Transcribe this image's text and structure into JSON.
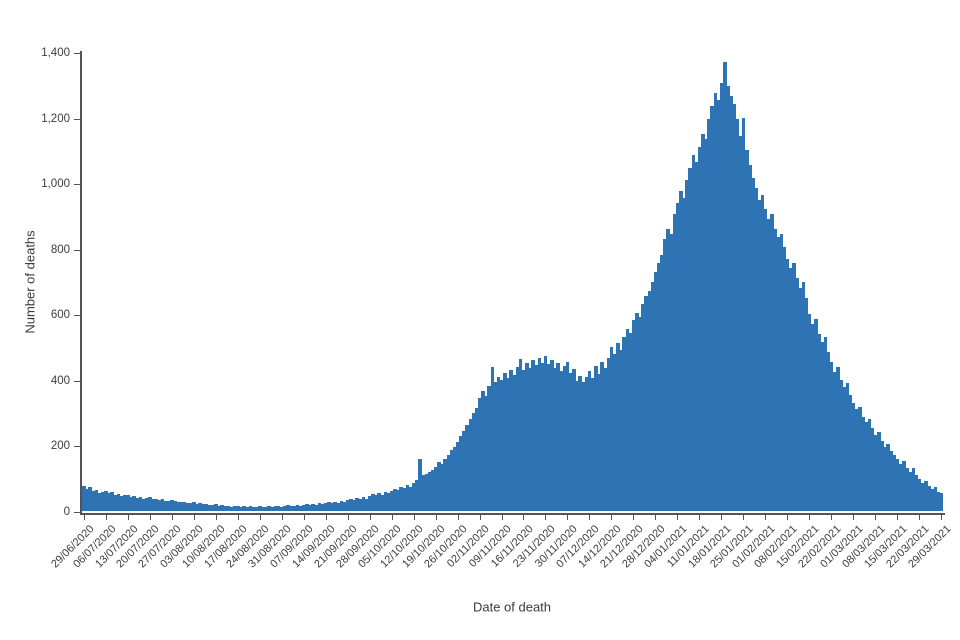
{
  "chart_data": {
    "type": "bar",
    "title": "",
    "xlabel": "Date of death",
    "ylabel": "Number of deaths",
    "grid": false,
    "legend": null,
    "bar_color": "#2E74B5",
    "axis_color": "#545454",
    "text_color": "#3d3d3d",
    "background_color": "#ffffff",
    "ylim": [
      0,
      1400
    ],
    "y_ticks": [
      0,
      200,
      400,
      600,
      800,
      1000,
      1200,
      1400
    ],
    "y_tick_labels": [
      "0",
      "200",
      "400",
      "600",
      "800",
      "1,000",
      "1,200",
      "1,400"
    ],
    "x_start_date": "29/06/2020",
    "x_end_date": "29/03/2021",
    "x_tick_interval_days": 7,
    "x_tick_labels": [
      "29/06/2020",
      "06/07/2020",
      "13/07/2020",
      "20/07/2020",
      "27/07/2020",
      "03/08/2020",
      "10/08/2020",
      "17/08/2020",
      "24/08/2020",
      "31/08/2020",
      "07/09/2020",
      "14/09/2020",
      "21/09/2020",
      "28/09/2020",
      "05/10/2020",
      "12/10/2020",
      "19/10/2020",
      "26/10/2020",
      "02/11/2020",
      "09/11/2020",
      "16/11/2020",
      "23/11/2020",
      "30/11/2020",
      "07/12/2020",
      "14/12/2020",
      "21/12/2020",
      "28/12/2020",
      "04/01/2021",
      "11/01/2021",
      "18/01/2021",
      "25/01/2021",
      "01/02/2021",
      "08/02/2021",
      "15/02/2021",
      "22/02/2021",
      "01/03/2021",
      "08/03/2021",
      "15/03/2021",
      "22/03/2021",
      "29/03/2021"
    ],
    "values_note": "one value per day from 29/06/2020 to 29/03/2021, estimated from bar heights",
    "values": [
      75,
      68,
      72,
      60,
      65,
      55,
      58,
      62,
      55,
      58,
      50,
      52,
      45,
      48,
      50,
      44,
      46,
      40,
      42,
      38,
      40,
      42,
      36,
      38,
      34,
      36,
      30,
      32,
      34,
      30,
      28,
      26,
      28,
      24,
      25,
      26,
      22,
      24,
      20,
      21,
      18,
      19,
      20,
      16,
      18,
      15,
      16,
      13,
      14,
      16,
      13,
      15,
      12,
      14,
      11,
      12,
      14,
      11,
      13,
      15,
      12,
      14,
      16,
      13,
      15,
      17,
      14,
      16,
      18,
      15,
      18,
      20,
      17,
      21,
      19,
      23,
      20,
      24,
      27,
      23,
      28,
      25,
      30,
      27,
      34,
      38,
      33,
      40,
      36,
      42,
      38,
      46,
      52,
      48,
      55,
      50,
      58,
      54,
      62,
      68,
      64,
      72,
      70,
      78,
      74,
      85,
      95,
      160,
      110,
      112,
      118,
      125,
      135,
      148,
      142,
      158,
      170,
      185,
      195,
      210,
      230,
      245,
      262,
      280,
      298,
      315,
      345,
      365,
      350,
      380,
      440,
      395,
      410,
      400,
      420,
      405,
      430,
      415,
      440,
      465,
      430,
      450,
      435,
      460,
      445,
      468,
      450,
      472,
      448,
      462,
      435,
      452,
      428,
      442,
      455,
      420,
      432,
      398,
      412,
      395,
      408,
      428,
      405,
      442,
      418,
      455,
      435,
      468,
      500,
      478,
      512,
      492,
      532,
      555,
      542,
      582,
      605,
      592,
      632,
      655,
      670,
      700,
      730,
      755,
      780,
      830,
      860,
      845,
      905,
      940,
      975,
      955,
      1010,
      1045,
      1085,
      1065,
      1110,
      1150,
      1135,
      1195,
      1235,
      1275,
      1255,
      1305,
      1370,
      1295,
      1265,
      1240,
      1195,
      1145,
      1200,
      1100,
      1055,
      1015,
      985,
      950,
      965,
      920,
      890,
      905,
      860,
      835,
      845,
      805,
      770,
      740,
      755,
      710,
      680,
      700,
      650,
      600,
      570,
      585,
      540,
      515,
      530,
      485,
      455,
      425,
      440,
      400,
      378,
      390,
      355,
      330,
      310,
      318,
      288,
      270,
      280,
      252,
      232,
      242,
      215,
      195,
      205,
      182,
      170,
      158,
      144,
      152,
      132,
      120,
      132,
      110,
      98,
      86,
      92,
      76,
      66,
      74,
      58,
      55
    ]
  }
}
